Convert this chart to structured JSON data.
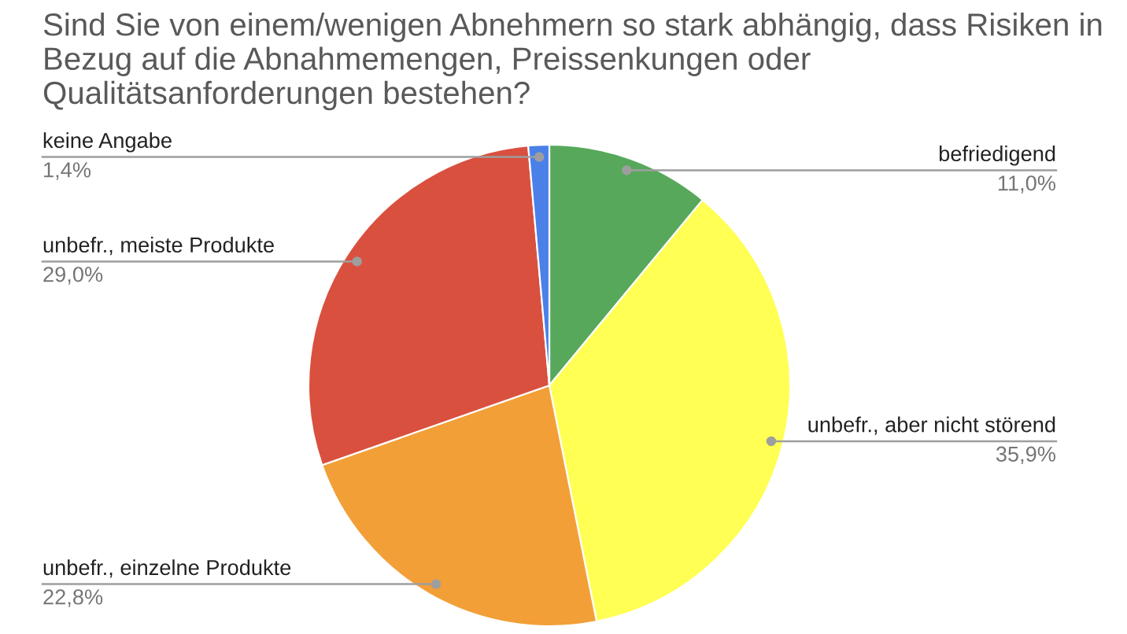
{
  "chart_data": {
    "type": "pie",
    "title": "Sind Sie von einem/wenigen Abnehmern so stark abhängig, dass Risiken in Bezug auf die Abnahmemengen, Preissenkungen oder Qualitätsanforderungen bestehen?",
    "categories": [
      "befriedigend",
      "unbefr., aber nicht störend",
      "unbefr., einzelne Produkte",
      "unbefr., meiste Produkte",
      "keine Angabe"
    ],
    "values": [
      11.0,
      35.9,
      22.8,
      29.0,
      1.4
    ],
    "value_labels": [
      "11,0%",
      "35,9%",
      "22,8%",
      "29,0%",
      "1,4%"
    ],
    "colors": [
      "#57a85b",
      "#ffff54",
      "#f29f38",
      "#d9503f",
      "#4a80e8"
    ],
    "legend": false
  }
}
